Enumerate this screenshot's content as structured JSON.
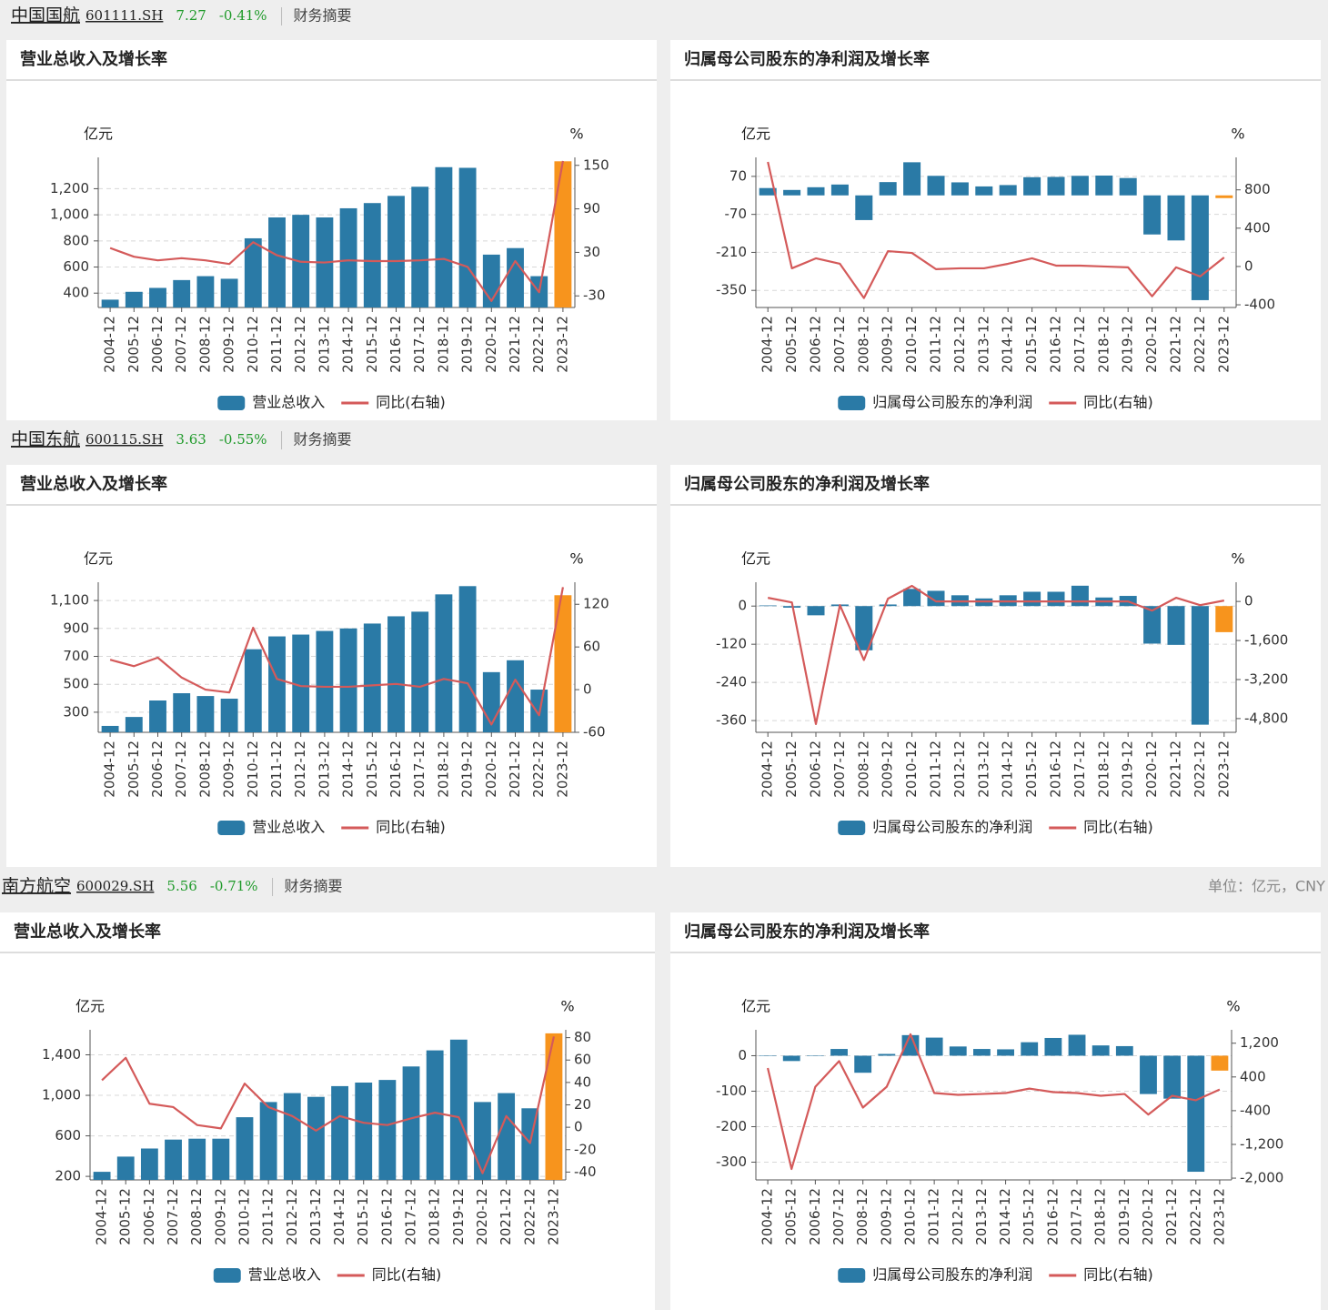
{
  "headers": [
    {
      "name": "中国国航",
      "code": "601111.SH",
      "price": "7.27",
      "change": "-0.41%",
      "link": "财务摘要"
    },
    {
      "name": "中国东航",
      "code": "600115.SH",
      "price": "3.63",
      "change": "-0.55%",
      "link": "财务摘要"
    },
    {
      "name": "南方航空",
      "code": "600029.SH",
      "price": "5.56",
      "change": "-0.71%",
      "link": "财务摘要"
    }
  ],
  "unit_note": "单位：亿元，CNY",
  "chart_data": [
    {
      "type": "bar_line",
      "title": "营业总收入及增长率",
      "y_label": "亿元",
      "y2_label": "%",
      "categories": [
        "2004-12",
        "2005-12",
        "2006-12",
        "2007-12",
        "2008-12",
        "2009-12",
        "2010-12",
        "2011-12",
        "2012-12",
        "2013-12",
        "2014-12",
        "2015-12",
        "2016-12",
        "2017-12",
        "2018-12",
        "2019-12",
        "2020-12",
        "2021-12",
        "2022-12",
        "2023-12"
      ],
      "series": [
        {
          "name": "营业总收入",
          "type": "bar",
          "color": "#2a7aa6",
          "values": [
            350,
            410,
            440,
            500,
            530,
            510,
            820,
            980,
            1000,
            980,
            1050,
            1090,
            1145,
            1215,
            1365,
            1360,
            695,
            745,
            530,
            1410
          ]
        },
        {
          "name": "同比(右轴)",
          "type": "line",
          "axis": "y2",
          "color": "#d45a5a",
          "values": [
            36,
            24,
            19,
            22,
            19,
            14,
            44,
            26,
            17,
            16,
            19,
            18,
            18,
            19,
            21,
            10,
            -37,
            18,
            -25,
            156
          ]
        }
      ],
      "highlight_color": "#f7941d",
      "ylim": [
        290,
        1440
      ],
      "yticks": [
        400,
        600,
        800,
        {
          "value": 1000,
          "label": "1,000"
        },
        {
          "value": 1200,
          "label": "1,200"
        }
      ],
      "y2lim": [
        -46,
        161
      ],
      "y2ticks": [
        -30,
        30,
        90,
        150
      ],
      "grid": true
    },
    {
      "type": "bar_line",
      "title": "归属母公司股东的净利润及增长率",
      "y_label": "亿元",
      "y2_label": "%",
      "categories": [
        "2004-12",
        "2005-12",
        "2006-12",
        "2007-12",
        "2008-12",
        "2009-12",
        "2010-12",
        "2011-12",
        "2012-12",
        "2013-12",
        "2014-12",
        "2015-12",
        "2016-12",
        "2017-12",
        "2018-12",
        "2019-12",
        "2020-12",
        "2021-12",
        "2022-12",
        "2023-12"
      ],
      "series": [
        {
          "name": "归属母公司股东的净利润",
          "type": "bar",
          "color": "#2a7aa6",
          "values": [
            27,
            20,
            30,
            40,
            -91,
            49,
            122,
            72,
            48,
            33,
            38,
            67,
            68,
            72,
            73,
            64,
            -144,
            -166,
            -386,
            -10
          ]
        },
        {
          "name": "同比(右轴)",
          "type": "line",
          "axis": "y2",
          "color": "#d45a5a",
          "values": [
            1092,
            -19,
            85,
            28,
            -329,
            160,
            141,
            -28,
            -19,
            -19,
            28,
            85,
            9,
            9,
            0,
            -9,
            -311,
            -9,
            -104,
            94
          ]
        }
      ],
      "highlight_color": "#f7941d",
      "ylim": [
        -413,
        140
      ],
      "yticks": [
        -350,
        -210,
        -70,
        70
      ],
      "y2lim": [
        -428,
        1139
      ],
      "y2ticks": [
        -400,
        0,
        400,
        800
      ],
      "grid": true
    },
    {
      "type": "bar_line",
      "title": "营业总收入及增长率",
      "y_label": "亿元",
      "y2_label": "%",
      "categories": [
        "2004-12",
        "2005-12",
        "2006-12",
        "2007-12",
        "2008-12",
        "2009-12",
        "2010-12",
        "2011-12",
        "2012-12",
        "2013-12",
        "2014-12",
        "2015-12",
        "2016-12",
        "2017-12",
        "2018-12",
        "2019-12",
        "2020-12",
        "2021-12",
        "2022-12",
        "2023-12"
      ],
      "series": [
        {
          "name": "营业总收入",
          "type": "bar",
          "color": "#2a7aa6",
          "values": [
            202,
            266,
            384,
            436,
            416,
            397,
            751,
            843,
            856,
            882,
            900,
            935,
            987,
            1020,
            1144,
            1203,
            587,
            672,
            462,
            1138
          ]
        },
        {
          "name": "同比(右轴)",
          "type": "line",
          "axis": "y2",
          "color": "#d45a5a",
          "values": [
            42,
            33,
            45,
            17,
            0,
            -4,
            87,
            15,
            5,
            4,
            4,
            6,
            8,
            4,
            15,
            9,
            -49,
            14,
            -36,
            144
          ]
        }
      ],
      "highlight_color": "#f7941d",
      "ylim": [
        156,
        1231
      ],
      "yticks": [
        300,
        500,
        700,
        900,
        {
          "value": 1100,
          "label": "1,100"
        }
      ],
      "y2lim": [
        -60,
        151
      ],
      "y2ticks": [
        -60,
        0,
        60,
        120
      ],
      "grid": true
    },
    {
      "type": "bar_line",
      "title": "归属母公司股东的净利润及增长率",
      "y_label": "亿元",
      "y2_label": "%",
      "categories": [
        "2004-12",
        "2005-12",
        "2006-12",
        "2007-12",
        "2008-12",
        "2009-12",
        "2010-12",
        "2011-12",
        "2012-12",
        "2013-12",
        "2014-12",
        "2015-12",
        "2016-12",
        "2017-12",
        "2018-12",
        "2019-12",
        "2020-12",
        "2021-12",
        "2022-12",
        "2023-12"
      ],
      "series": [
        {
          "name": "归属母公司股东的净利润",
          "type": "bar",
          "color": "#2a7aa6",
          "values": [
            2,
            -5,
            -29,
            5,
            -139,
            5,
            54,
            48,
            34,
            24,
            34,
            45,
            45,
            64,
            27,
            32,
            -118,
            -122,
            -373,
            -82
          ]
        },
        {
          "name": "同比(右轴)",
          "type": "line",
          "axis": "y2",
          "color": "#d45a5a",
          "values": [
            150,
            -38,
            -5025,
            -150,
            -2400,
            113,
            638,
            0,
            0,
            0,
            0,
            0,
            0,
            0,
            0,
            0,
            -375,
            150,
            -150,
            38
          ]
        }
      ],
      "highlight_color": "#f7941d",
      "ylim": [
        -397,
        75
      ],
      "yticks": [
        -360,
        -240,
        -120,
        0
      ],
      "y2lim": [
        -5363,
        788
      ],
      "y2ticks": [
        {
          "value": -4800,
          "label": "-4,800"
        },
        {
          "value": -3200,
          "label": "-3,200"
        },
        {
          "value": -1600,
          "label": "-1,600"
        },
        0
      ],
      "grid": true
    },
    {
      "type": "bar_line",
      "title": "营业总收入及增长率",
      "y_label": "亿元",
      "y2_label": "%",
      "categories": [
        "2004-12",
        "2005-12",
        "2006-12",
        "2007-12",
        "2008-12",
        "2009-12",
        "2010-12",
        "2011-12",
        "2012-12",
        "2013-12",
        "2014-12",
        "2015-12",
        "2016-12",
        "2017-12",
        "2018-12",
        "2019-12",
        "2020-12",
        "2021-12",
        "2022-12",
        "2023-12"
      ],
      "series": [
        {
          "name": "营业总收入",
          "type": "bar",
          "color": "#2a7aa6",
          "values": [
            245,
            395,
            475,
            563,
            572,
            572,
            784,
            934,
            1022,
            985,
            1091,
            1126,
            1152,
            1285,
            1444,
            1550,
            934,
            1022,
            872,
            1612
          ]
        },
        {
          "name": "同比(右轴)",
          "type": "line",
          "axis": "y2",
          "color": "#d45a5a",
          "values": [
            42,
            62,
            21,
            18,
            2,
            -1,
            39,
            18,
            10,
            -3,
            10,
            4,
            2,
            8,
            13,
            9,
            -41,
            10,
            -14,
            81
          ]
        }
      ],
      "highlight_color": "#f7941d",
      "ylim": [
        165,
        1647
      ],
      "yticks": [
        200,
        600,
        {
          "value": 1000,
          "label": "1,000"
        },
        {
          "value": 1400,
          "label": "1,400"
        }
      ],
      "y2lim": [
        -47,
        87
      ],
      "y2ticks": [
        -40,
        -20,
        0,
        20,
        40,
        60,
        80
      ],
      "grid": true
    },
    {
      "type": "bar_line",
      "title": "归属母公司股东的净利润及增长率",
      "y_label": "亿元",
      "y2_label": "%",
      "categories": [
        "2004-12",
        "2005-12",
        "2006-12",
        "2007-12",
        "2008-12",
        "2009-12",
        "2010-12",
        "2011-12",
        "2012-12",
        "2013-12",
        "2014-12",
        "2015-12",
        "2016-12",
        "2017-12",
        "2018-12",
        "2019-12",
        "2020-12",
        "2021-12",
        "2022-12",
        "2023-12"
      ],
      "series": [
        {
          "name": "归属母公司股东的净利润",
          "type": "bar",
          "color": "#2a7aa6",
          "values": [
            1,
            -15,
            1,
            19,
            -48,
            5,
            58,
            51,
            26,
            19,
            18,
            38,
            50,
            59,
            29,
            27,
            -108,
            -121,
            -327,
            -42
          ]
        },
        {
          "name": "同比(右轴)",
          "type": "line",
          "axis": "y2",
          "color": "#d45a5a",
          "values": [
            613,
            -1783,
            167,
            776,
            -327,
            167,
            1412,
            18,
            -25,
            -4,
            18,
            124,
            40,
            18,
            -46,
            -4,
            -492,
            -46,
            -152,
            103
          ]
        }
      ],
      "highlight_color": "#f7941d",
      "ylim": [
        -350,
        73
      ],
      "yticks": [
        -300,
        -200,
        -100,
        0
      ],
      "y2lim": [
        -2042,
        1518
      ],
      "y2ticks": [
        {
          "value": -2000,
          "label": "-2,000"
        },
        {
          "value": -1200,
          "label": "-1,200"
        },
        -400,
        400,
        {
          "value": 1200,
          "label": "1,200"
        }
      ],
      "grid": true
    }
  ]
}
